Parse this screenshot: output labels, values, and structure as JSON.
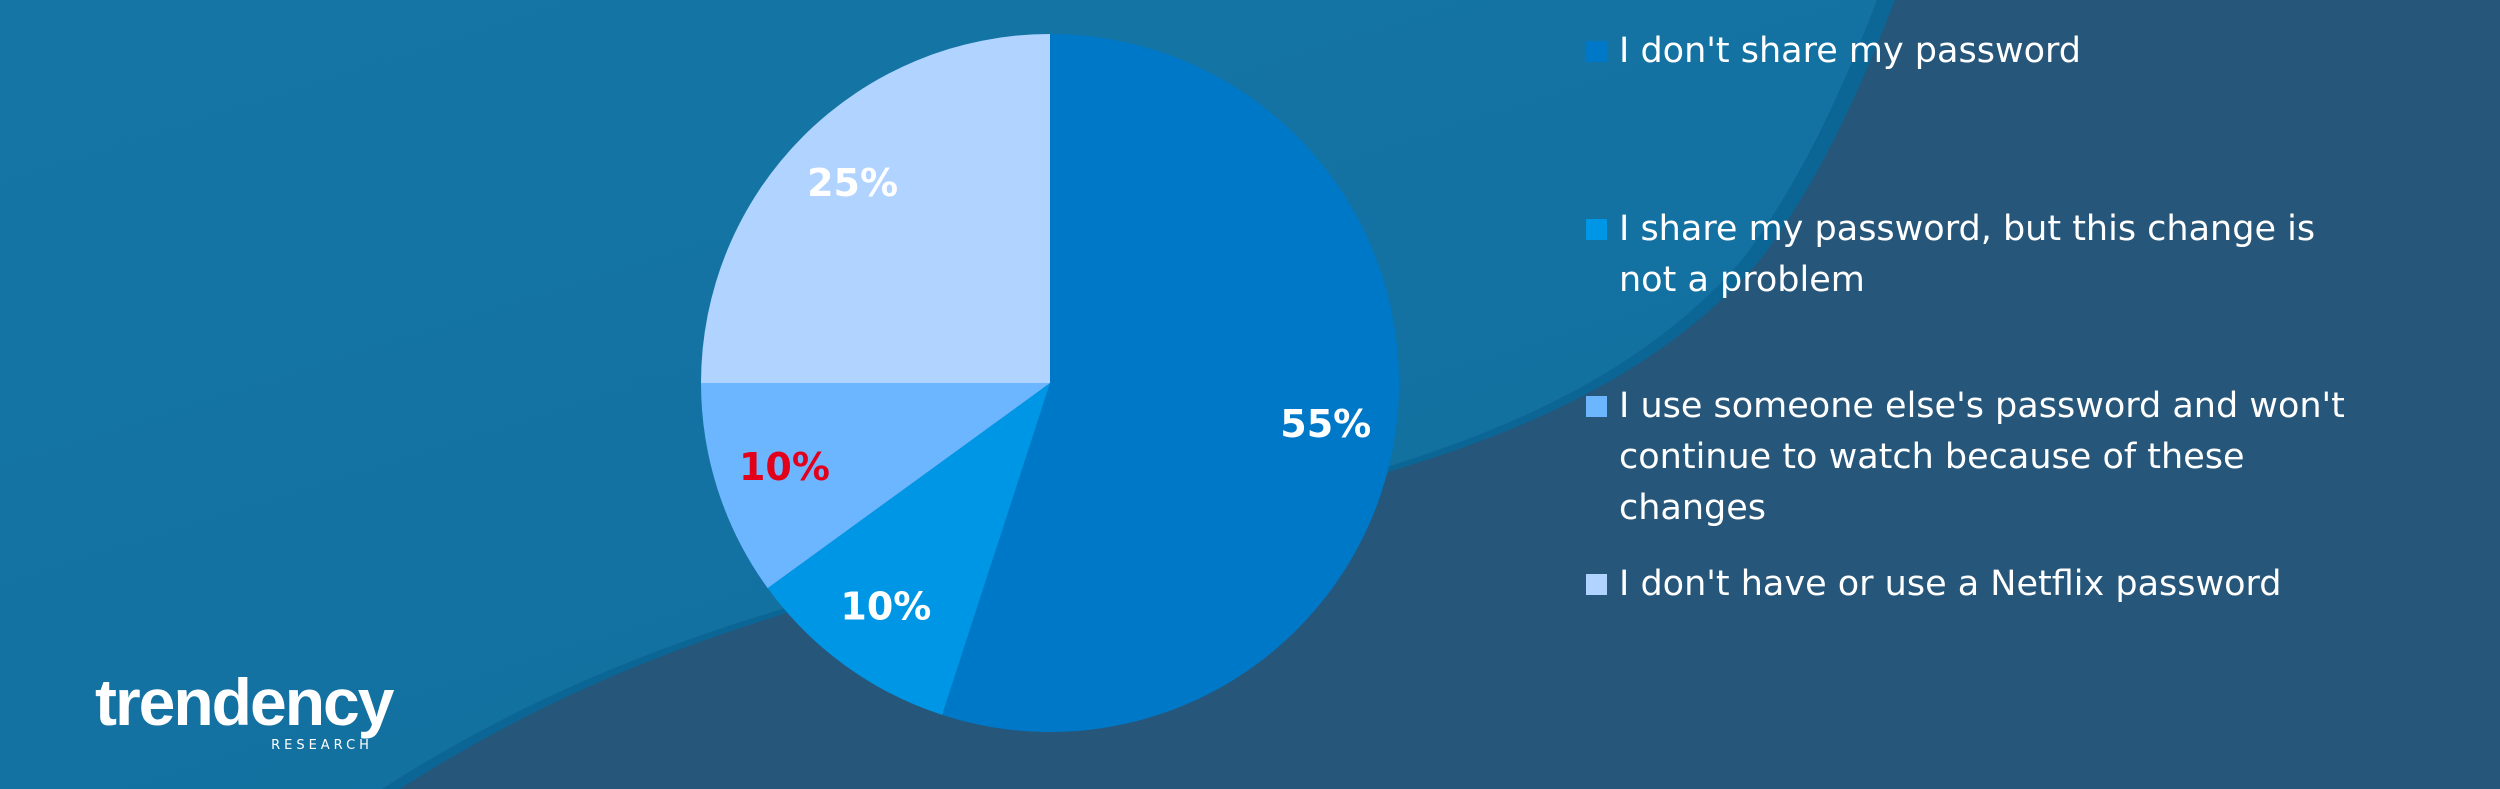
{
  "chart_data": {
    "type": "pie",
    "categories": [
      "I don't share my password",
      "I share my password, but this change is not a problem",
      "I use someone else's password and won't continue to watch because of these changes",
      "I don't have or use a Netflix password"
    ],
    "values": [
      55,
      10,
      10,
      25
    ],
    "value_labels": [
      "55%",
      "10%",
      "10%",
      "25%"
    ],
    "colors": [
      "#0078c8",
      "#0096e6",
      "#6cb5ff",
      "#b0d3ff"
    ],
    "label_colors": [
      "#ffffff",
      "#ffffff",
      "#e3001b",
      "#ffffff"
    ]
  },
  "logo": {
    "name": "trendency",
    "tagline": "RESEARCH"
  }
}
